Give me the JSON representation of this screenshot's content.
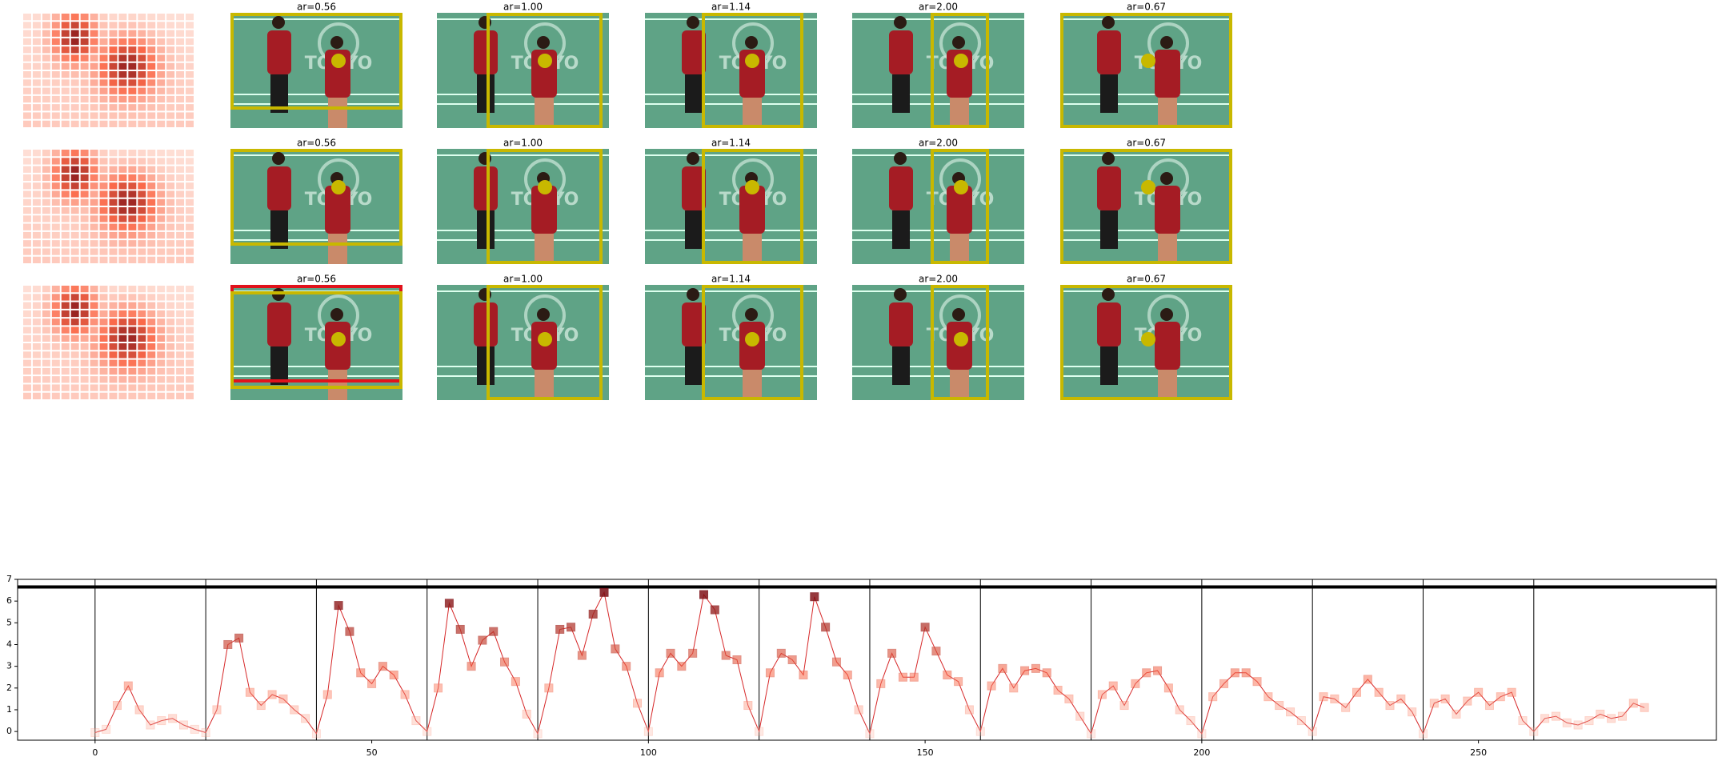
{
  "panel_titles": [
    [
      "ar=0.56",
      "ar=1.00",
      "ar=1.14",
      "ar=2.00",
      "ar=0.67"
    ],
    [
      "ar=0.56",
      "ar=1.00",
      "ar=1.14",
      "ar=2.00",
      "ar=0.67"
    ],
    [
      "ar=0.56",
      "ar=1.00",
      "ar=1.14",
      "ar=2.00",
      "ar=0.67"
    ]
  ],
  "chart_data": {
    "type": "line",
    "color": "#d62728",
    "x": [
      0,
      2,
      4,
      6,
      8,
      10,
      12,
      14,
      16,
      18,
      20,
      22,
      24,
      26,
      28,
      30,
      32,
      34,
      36,
      38,
      40,
      42,
      44,
      46,
      48,
      50,
      52,
      54,
      56,
      58,
      60,
      62,
      64,
      66,
      68,
      70,
      72,
      74,
      76,
      78,
      80,
      82,
      84,
      86,
      88,
      90,
      92,
      94,
      96,
      98,
      100,
      102,
      104,
      106,
      108,
      110,
      112,
      114,
      116,
      118,
      120,
      122,
      124,
      126,
      128,
      130,
      132,
      134,
      136,
      138,
      140,
      142,
      144,
      146,
      148,
      150,
      152,
      154,
      156,
      158,
      160,
      162,
      164,
      166,
      168,
      170,
      172,
      174,
      176,
      178,
      180,
      182,
      184,
      186,
      188,
      190,
      192,
      194,
      196,
      198,
      200,
      202,
      204,
      206,
      208,
      210,
      212,
      214,
      216,
      218,
      220,
      222,
      224,
      226,
      228,
      230,
      232,
      234,
      236,
      238,
      240,
      242,
      244,
      246,
      248,
      250,
      252,
      254,
      256,
      258,
      260,
      262,
      264,
      266,
      268,
      270,
      272,
      274,
      276,
      278,
      280
    ],
    "values": [
      -0.05,
      0.1,
      1.2,
      2.1,
      1.0,
      0.3,
      0.5,
      0.6,
      0.3,
      0.1,
      -0.05,
      1.0,
      4.0,
      4.3,
      1.8,
      1.2,
      1.7,
      1.5,
      1.0,
      0.6,
      -0.1,
      1.7,
      5.8,
      4.6,
      2.7,
      2.2,
      3.0,
      2.6,
      1.7,
      0.5,
      0,
      2.0,
      5.9,
      4.7,
      3.0,
      4.2,
      4.6,
      3.2,
      2.3,
      0.8,
      -0.1,
      2.0,
      4.7,
      4.8,
      3.5,
      5.4,
      6.4,
      3.8,
      3.0,
      1.3,
      0,
      2.7,
      3.6,
      3.0,
      3.6,
      6.3,
      5.6,
      3.5,
      3.3,
      1.2,
      0,
      2.7,
      3.6,
      3.3,
      2.6,
      6.2,
      4.8,
      3.2,
      2.6,
      1.0,
      -0.1,
      2.2,
      3.6,
      2.5,
      2.5,
      4.8,
      3.7,
      2.6,
      2.3,
      1.0,
      0,
      2.1,
      2.9,
      2.0,
      2.8,
      2.9,
      2.7,
      1.9,
      1.5,
      0.7,
      -0.1,
      1.7,
      2.1,
      1.2,
      2.2,
      2.7,
      2.8,
      2.0,
      1.0,
      0.5,
      -0.1,
      1.6,
      2.2,
      2.7,
      2.7,
      2.3,
      1.6,
      1.2,
      0.9,
      0.5,
      0,
      1.6,
      1.5,
      1.1,
      1.8,
      2.4,
      1.8,
      1.2,
      1.5,
      0.9,
      -0.1,
      1.3,
      1.5,
      0.8,
      1.4,
      1.8,
      1.2,
      1.6,
      1.8,
      0.5,
      0,
      0.6,
      0.7,
      0.4,
      0.3,
      0.5,
      0.8,
      0.6,
      0.7,
      1.3,
      1.1
    ],
    "hline": 6.65,
    "vlines": [
      0,
      20,
      40,
      60,
      80,
      100,
      120,
      140,
      160,
      180,
      200,
      220,
      240,
      260
    ],
    "xlim": [
      -14,
      293
    ],
    "ylim": [
      -0.4,
      7
    ],
    "xticks": [
      0,
      50,
      100,
      150,
      200,
      250
    ],
    "yticks": [
      0,
      1,
      2,
      3,
      4,
      5,
      6,
      7
    ]
  }
}
